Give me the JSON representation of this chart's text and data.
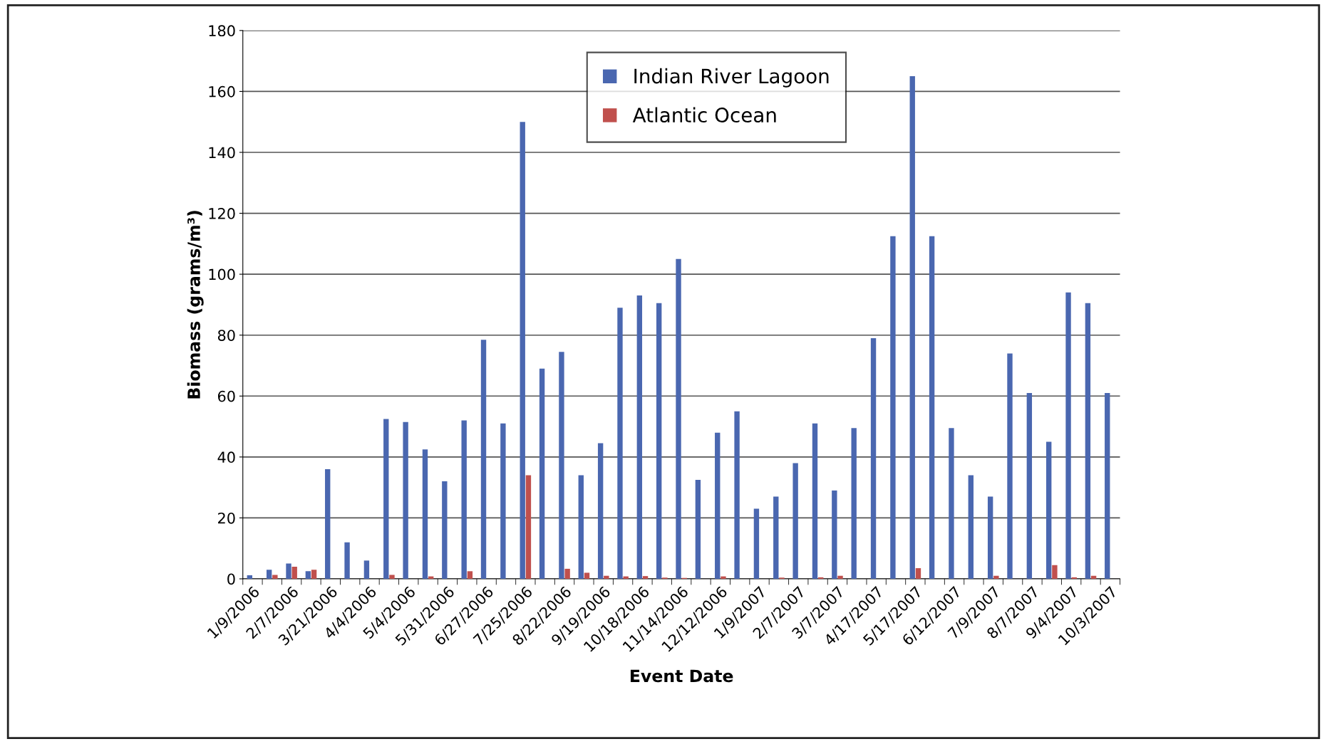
{
  "chart_data": {
    "type": "bar",
    "xlabel": "Event Date",
    "ylabel": "Biomass (grams/m³)",
    "categories": [
      "1/9/2006",
      null,
      "2/7/2006",
      null,
      "3/21/2006",
      null,
      "4/4/2006",
      null,
      "5/4/2006",
      null,
      "5/31/2006",
      null,
      "6/27/2006",
      null,
      "7/25/2006",
      null,
      "8/22/2006",
      null,
      "9/19/2006",
      null,
      "10/18/2006",
      null,
      "11/14/2006",
      null,
      "12/12/2006",
      null,
      "1/9/2007",
      null,
      "2/7/2007",
      null,
      "3/7/2007",
      null,
      "4/17/2007",
      null,
      "5/17/2007",
      null,
      "6/12/2007",
      null,
      "7/9/2007",
      null,
      "8/7/2007",
      null,
      "9/4/2007",
      null,
      "10/3/2007"
    ],
    "series": [
      {
        "name": "Indian River Lagoon",
        "color": "#4a67b0",
        "values": [
          1.2,
          3,
          5,
          2.5,
          36,
          12,
          6,
          52.5,
          51.5,
          42.5,
          32,
          52,
          78.5,
          51,
          150,
          69,
          74.5,
          34,
          44.5,
          89,
          93,
          90.5,
          105,
          32.5,
          48,
          55,
          23,
          27,
          38,
          51,
          29,
          49.5,
          79,
          112.5,
          165,
          112.5,
          49.5,
          34,
          27,
          74,
          61,
          45,
          94,
          90.5,
          61
        ]
      },
      {
        "name": "Atlantic Ocean",
        "color": "#c0504d",
        "values": [
          null,
          1.3,
          4,
          3,
          null,
          null,
          null,
          1.3,
          null,
          0.8,
          null,
          2.5,
          null,
          null,
          34,
          null,
          3.3,
          2,
          1,
          0.8,
          0.9,
          0.4,
          0.3,
          null,
          0.8,
          null,
          null,
          0.4,
          null,
          0.5,
          1,
          null,
          null,
          null,
          3.5,
          null,
          null,
          null,
          1,
          null,
          null,
          4.5,
          0.5,
          1,
          null
        ]
      }
    ],
    "ylim": [
      0,
      180
    ],
    "yticks": [
      0,
      20,
      40,
      60,
      80,
      100,
      120,
      140,
      160,
      180
    ],
    "grid": "y",
    "legend": "top"
  }
}
